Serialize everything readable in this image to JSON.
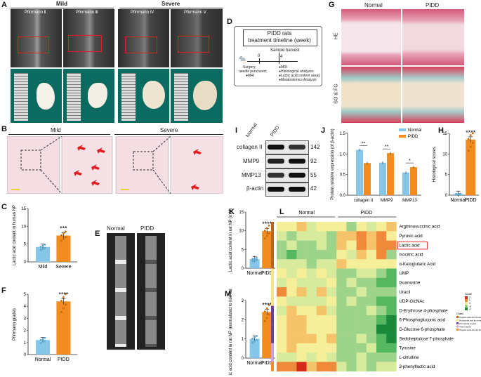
{
  "panel_letters": {
    "A": "A",
    "B": "B",
    "C": "C",
    "D": "D",
    "E": "E",
    "F": "F",
    "G": "G",
    "H": "H",
    "I": "I",
    "J": "J",
    "K": "K",
    "L": "L",
    "M": "M"
  },
  "panelA": {
    "group_mild": "Mild",
    "group_severe": "Severe",
    "grades": [
      "Pfirrmann Ⅱ",
      "Pfirrmann Ⅲ",
      "Pfirrmann Ⅳ",
      "Pfirrmann Ⅴ"
    ]
  },
  "panelB": {
    "mild": "Mild",
    "severe": "Severe"
  },
  "panelC": {
    "significance": "***",
    "ylabel": "Lactic acid content in human NP",
    "categories": [
      "Mild",
      "Severe"
    ],
    "yticks": [
      "0",
      "5",
      "10",
      "15"
    ]
  },
  "panelD": {
    "title_line1": "PIDD rats",
    "title_line2": "treatment timeline (week)",
    "sample_harvest": "Sample harvest",
    "tick0": "0",
    "tick4": "4",
    "surgery": "Surgery:",
    "needle": "needle punctured;",
    "mri": "●MRI",
    "right_items": [
      "●MRI",
      "●Histological analyzes",
      "●Lactic acid content assay",
      "●Metabolomics Analysis"
    ]
  },
  "panelE": {
    "normal": "Normal",
    "pidd": "PIDD"
  },
  "panelF": {
    "significance": "****",
    "ylabel": "Pfirrmann grades",
    "categories": [
      "Normal",
      "PIDD"
    ],
    "yticks": [
      "0",
      "1",
      "2",
      "3",
      "4",
      "5"
    ]
  },
  "panelG": {
    "normal": "Normal",
    "pidd": "PIDD",
    "row1": "HE",
    "row2": "SO & FG"
  },
  "panelH": {
    "significance": "****",
    "ylabel": "Histological scores",
    "categories": [
      "Normal",
      "PIDD"
    ],
    "yticks": [
      "0",
      "5",
      "10",
      "15"
    ]
  },
  "panelI": {
    "col_normal": "Normal",
    "col_pidd": "PIDD",
    "rows": [
      {
        "name": "collagen II",
        "kda": "142"
      },
      {
        "name": "MMP9",
        "kda": "92"
      },
      {
        "name": "MMP13",
        "kda": "55"
      },
      {
        "name": "β-actin",
        "kda": "42"
      }
    ]
  },
  "panelJ": {
    "ylabel": "Protein relative expression (of β-actin)",
    "legend": [
      "Normal",
      "PIDD"
    ],
    "categories": [
      "collagen II",
      "MMP9",
      "MMP13"
    ],
    "sig": [
      "**",
      "**",
      "*"
    ],
    "yticks": [
      "0.0",
      "0.5",
      "1.0",
      "1.5"
    ]
  },
  "panelK": {
    "significance": "****",
    "ylabel": "Lactic acid content in rat NP (mM)",
    "categories": [
      "Normal",
      "PIDD"
    ],
    "yticks": [
      "0",
      "5",
      "10",
      "15"
    ]
  },
  "panelM": {
    "significance": "****",
    "ylabel": "Lactic acid content in rat NP (normalized to normal group)",
    "categories": [
      "Normal",
      "PIDD"
    ],
    "yticks": [
      "0",
      "1",
      "2",
      "3"
    ]
  },
  "panelL": {
    "normal": "Normal",
    "pidd": "PIDD",
    "metabolites": [
      "Argininosuccinic acid",
      "Pyruvic acid",
      "Lactic acid",
      "Isocitric acid",
      "α-Ketoglutaric Acid",
      "UMP",
      "Guanosine",
      "Uracil",
      "UDP-GlcNAc",
      "D-Erythrose 4-phosphate",
      "6-Phosphogluconic acid",
      "D-Glucose 6-phosphate",
      "Sedoheptulose 7-phosphate",
      "Tyrosine",
      "L-citrulline",
      "3-phenyllactic acid"
    ],
    "scale_title": "Scale",
    "scale_vals": [
      "2",
      "1",
      "0",
      "-1",
      "-2"
    ],
    "class_title": "Class",
    "classes": [
      "Organic acid And Its derivatives",
      "Nucleotide and its metabolomics",
      "Phosphate sugars",
      "Amino acids",
      "Organic Acid And Its Derivatives"
    ],
    "class_colors": [
      "#b5651d",
      "#f3e58a",
      "#6b3fa0",
      "#c9a3d8",
      "#f08a24"
    ]
  },
  "colors": {
    "normal_bar": "#86c6e8",
    "pidd_bar": "#f28c1e",
    "red": "#e02020"
  },
  "chart_data": [
    {
      "type": "bar",
      "panel": "C",
      "categories": [
        "Mild",
        "Severe"
      ],
      "values": [
        4.2,
        7.4
      ],
      "ylabel": "Lactic acid content in human NP",
      "ylim": [
        0,
        15
      ]
    },
    {
      "type": "bar",
      "panel": "F",
      "categories": [
        "Normal",
        "PIDD"
      ],
      "values": [
        1.2,
        4.4
      ],
      "ylabel": "Pfirrmann grades",
      "ylim": [
        0,
        5
      ]
    },
    {
      "type": "bar",
      "panel": "H",
      "categories": [
        "Normal",
        "PIDD"
      ],
      "values": [
        0.3,
        13.5
      ],
      "ylabel": "Histological scores",
      "ylim": [
        0,
        15
      ]
    },
    {
      "type": "bar",
      "panel": "J",
      "categories": [
        "collagen II",
        "MMP9",
        "MMP13"
      ],
      "series": [
        {
          "name": "Normal",
          "values": [
            1.1,
            0.79,
            0.55
          ]
        },
        {
          "name": "PIDD",
          "values": [
            0.78,
            1.02,
            0.68
          ]
        }
      ],
      "ylabel": "Protein relative expression (of β-actin)",
      "ylim": [
        0,
        1.5
      ]
    },
    {
      "type": "bar",
      "panel": "K",
      "categories": [
        "Normal",
        "PIDD"
      ],
      "values": [
        2.4,
        9.9
      ],
      "ylabel": "Lactic acid content in rat NP (mM)",
      "ylim": [
        0,
        15
      ]
    },
    {
      "type": "bar",
      "panel": "M",
      "categories": [
        "Normal",
        "PIDD"
      ],
      "values": [
        1.0,
        2.4
      ],
      "ylabel": "Lactic acid content in rat NP (normalized to normal group)",
      "ylim": [
        0,
        3
      ]
    }
  ]
}
